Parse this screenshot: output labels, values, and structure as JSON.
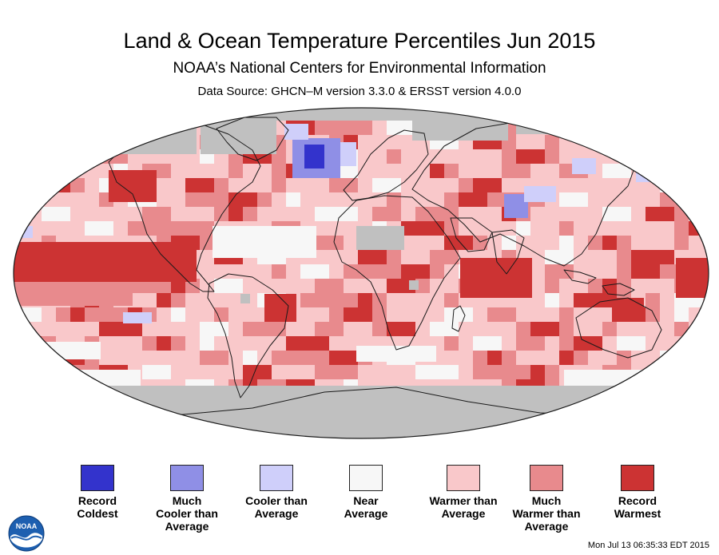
{
  "header": {
    "title": "Land & Ocean Temperature Percentiles Jun 2015",
    "subtitle": "NOAA’s National Centers for Environmental Information",
    "source": "Data Source: GHCN–M version 3.3.0 & ERSST version 4.0.0"
  },
  "colors": {
    "missing": "#c0c0c0",
    "border": "#1a1a1a"
  },
  "legend": [
    {
      "label": "Record\nColdest",
      "color": "#3333cc"
    },
    {
      "label": "Much\nCooler than\nAverage",
      "color": "#8f8fe6"
    },
    {
      "label": "Cooler than\nAverage",
      "color": "#cfcffa"
    },
    {
      "label": "Near\nAverage",
      "color": "#f7f7f7"
    },
    {
      "label": "Warmer than\nAverage",
      "color": "#f9c8ca"
    },
    {
      "label": "Much\nWarmer than\nAverage",
      "color": "#e88a8d"
    },
    {
      "label": "Record\nWarmest",
      "color": "#cc3333"
    }
  ],
  "logo": {
    "text": "NOAA"
  },
  "footer": {
    "timestamp": "Mon Jul 13 06:35:33 EDT 2015"
  }
}
